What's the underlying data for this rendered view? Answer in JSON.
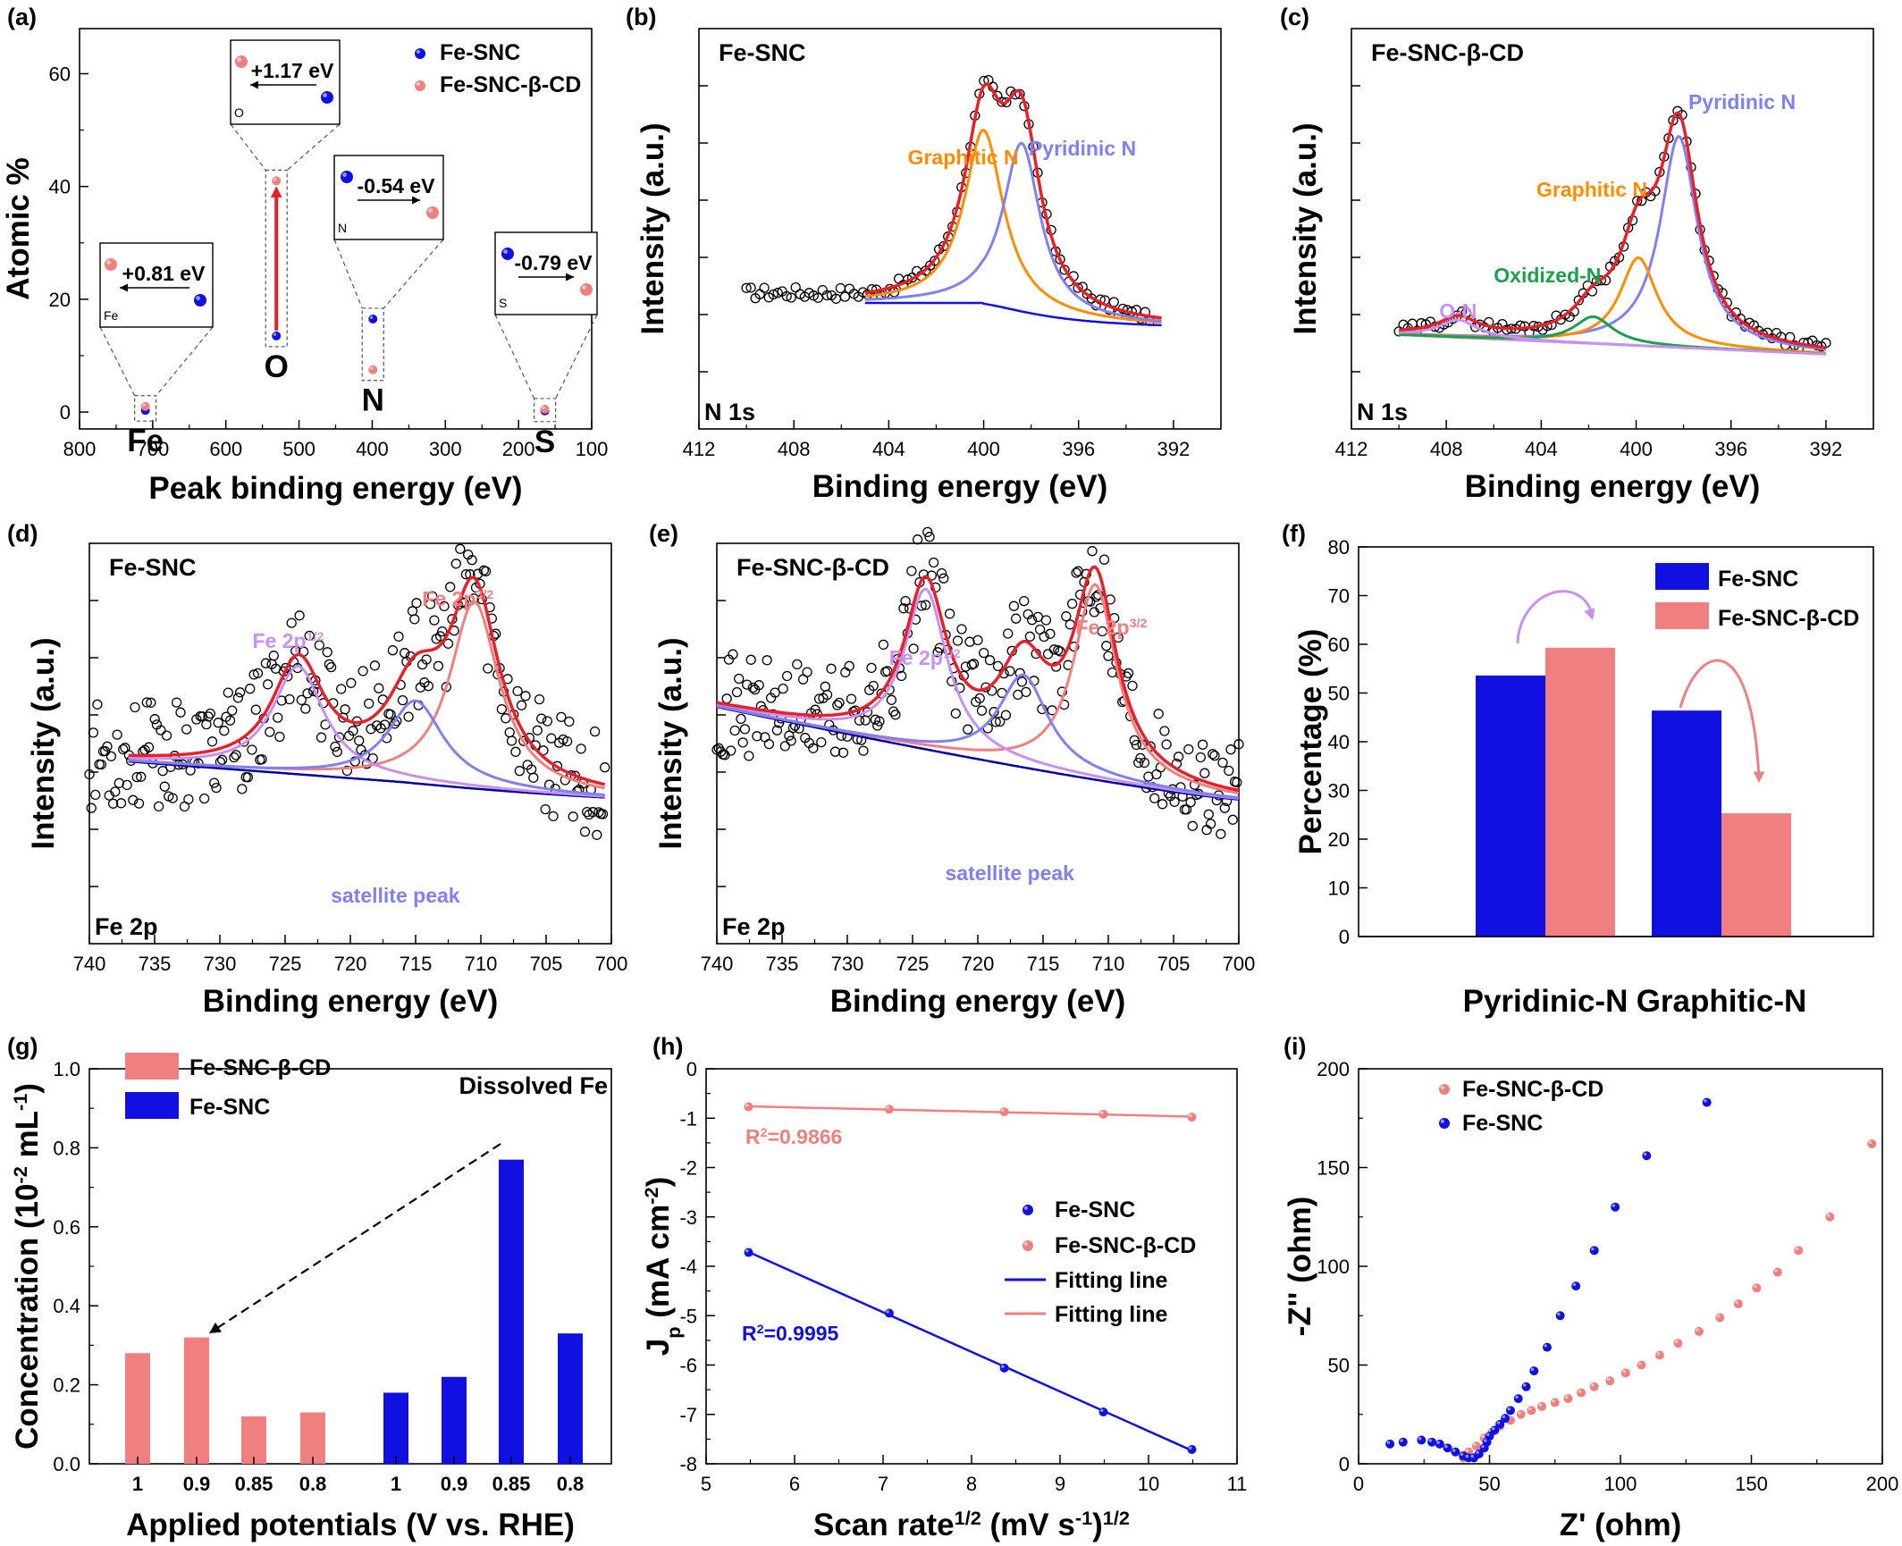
{
  "colors": {
    "blue": "#1010e0",
    "pink": "#f08080",
    "red": "#e8202a",
    "orange": "#ff8c00",
    "lightblue": "#8080f0",
    "green": "#1aa14a",
    "violet": "#c890f0",
    "navy": "#0000a0"
  },
  "chart_data": [
    {
      "id": "a",
      "panel": "(a)",
      "type": "scatter",
      "xlabel": "Peak binding energy (eV)",
      "ylabel": "Atomic %",
      "xlim": [
        800,
        100
      ],
      "ylim": [
        -3,
        68
      ],
      "xreversed": true,
      "xticks": [
        800,
        700,
        600,
        500,
        400,
        300,
        200,
        100
      ],
      "yticks": [
        0,
        20,
        40,
        60
      ],
      "legend": [
        "Fe-SNC",
        "Fe-SNC-β-CD"
      ],
      "elements": [
        {
          "label": "Fe",
          "x": 710,
          "fe_snc": 0.3,
          "fe_snc_bcd": 1.0,
          "box_label": "Fe",
          "shift": "+0.81 eV"
        },
        {
          "label": "O",
          "x": 531,
          "fe_snc": 13.5,
          "fe_snc_bcd": 41.0,
          "box_label": "O",
          "shift": "+1.17 eV"
        },
        {
          "label": "N",
          "x": 399,
          "fe_snc": 16.5,
          "fe_snc_bcd": 7.5,
          "box_label": "N",
          "shift": "-0.54 eV"
        },
        {
          "label": "S",
          "x": 164,
          "fe_snc": 0.2,
          "fe_snc_bcd": 0.5,
          "box_label": "S",
          "shift": "-0.79 eV"
        }
      ]
    },
    {
      "id": "b",
      "panel": "(b)",
      "type": "line",
      "title": "Fe-SNC",
      "corner": "N 1s",
      "xlabel": "Binding energy (eV)",
      "ylabel": "Intensity (a.u.)",
      "xlim": [
        412,
        390
      ],
      "xreversed": true,
      "xticks": [
        412,
        408,
        404,
        400,
        396,
        392
      ],
      "peaks": [
        {
          "name": "Graphitic N",
          "center": 400.0,
          "height": 0.68
        },
        {
          "name": "Pyridinic N",
          "center": 398.4,
          "height": 0.66
        }
      ]
    },
    {
      "id": "c",
      "panel": "(c)",
      "type": "line",
      "title": "Fe-SNC-β-CD",
      "corner": "N 1s",
      "xlabel": "Binding energy (eV)",
      "ylabel": "Intensity (a.u.)",
      "xlim": [
        412,
        390
      ],
      "xreversed": true,
      "xticks": [
        412,
        408,
        404,
        400,
        396,
        392
      ],
      "peaks": [
        {
          "name": "Pyridinic N",
          "center": 398.2,
          "height": 0.9
        },
        {
          "name": "Graphitic N",
          "center": 399.9,
          "height": 0.38
        },
        {
          "name": "Oxidized-N",
          "center": 401.8,
          "height": 0.12
        },
        {
          "name": "O-N",
          "center": 407.5,
          "height": 0.1
        }
      ]
    },
    {
      "id": "d",
      "panel": "(d)",
      "type": "line",
      "title": "Fe-SNC",
      "corner": "Fe 2p",
      "xlabel": "Binding energy (eV)",
      "ylabel": "Intensity (a.u.)",
      "xlim": [
        740,
        700
      ],
      "xreversed": true,
      "xticks": [
        740,
        735,
        730,
        725,
        720,
        715,
        710,
        705,
        700
      ],
      "peaks": [
        {
          "name": "Fe 2p",
          "sup": "3/2",
          "center": 710.5
        },
        {
          "name": "Fe 2p",
          "sup": "1/2",
          "center": 724.0
        },
        {
          "name": "satellite peak",
          "center": 715.0
        }
      ]
    },
    {
      "id": "e",
      "panel": "(e)",
      "type": "line",
      "title": "Fe-SNC-β-CD",
      "corner": "Fe 2p",
      "xlabel": "Binding energy (eV)",
      "ylabel": "Intensity (a.u.)",
      "xlim": [
        740,
        700
      ],
      "xreversed": true,
      "xticks": [
        740,
        735,
        730,
        725,
        720,
        715,
        710,
        705,
        700
      ],
      "peaks": [
        {
          "name": "Fe 2p",
          "sup": "3/2",
          "center": 711.0
        },
        {
          "name": "Fe 2p",
          "sup": "1/2",
          "center": 724.0
        },
        {
          "name": "satellite peak",
          "center": 716.5
        }
      ]
    },
    {
      "id": "f",
      "panel": "(f)",
      "type": "bar",
      "ylabel": "Percentage (%)",
      "categories": [
        "Pyridinic-N",
        "Graphitic-N"
      ],
      "ylim": [
        0,
        80
      ],
      "yticks": [
        0,
        10,
        20,
        30,
        40,
        50,
        60,
        70,
        80
      ],
      "series": [
        {
          "name": "Fe-SNC",
          "values": [
            53.6,
            46.4
          ]
        },
        {
          "name": "Fe-SNC-β-CD",
          "values": [
            59.3,
            25.3
          ]
        }
      ]
    },
    {
      "id": "g",
      "panel": "(g)",
      "type": "bar",
      "title": "Dissolved Fe",
      "xlabel": "Applied potentials (V vs. RHE)",
      "ylabel": "Concentration (10⁻² mL⁻¹)",
      "ylim": [
        0,
        1.0
      ],
      "yticks": [
        0.0,
        0.2,
        0.4,
        0.6,
        0.8,
        1.0
      ],
      "series": [
        {
          "name": "Fe-SNC-β-CD",
          "categories": [
            "1",
            "0.9",
            "0.85",
            "0.8"
          ],
          "values": [
            0.28,
            0.32,
            0.12,
            0.13
          ]
        },
        {
          "name": "Fe-SNC",
          "categories": [
            "1",
            "0.9",
            "0.85",
            "0.8"
          ],
          "values": [
            0.18,
            0.22,
            0.77,
            0.33
          ]
        }
      ]
    },
    {
      "id": "h",
      "panel": "(h)",
      "type": "scatter",
      "xlabel": "Scan rate",
      "xlabel_sup": "1/2",
      "xlabel_unit": " (mV s",
      "xlabel_unit_sup": "-1",
      "xlabel_close": ")",
      "xlabel_close_sup": "1/2",
      "ylabel": "J",
      "ylabel_sub": "p",
      "ylabel_unit": " (mA cm",
      "ylabel_unit_sup": "-2",
      "ylabel_close": ")",
      "xlim": [
        5,
        11
      ],
      "ylim": [
        -8,
        0
      ],
      "xticks": [
        5,
        6,
        7,
        8,
        9,
        10,
        11
      ],
      "yticks": [
        0,
        -1,
        -2,
        -3,
        -4,
        -5,
        -6,
        -7,
        -8
      ],
      "legend": [
        "Fe-SNC",
        "Fe-SNC-β-CD",
        "Fitting line",
        "Fitting line"
      ],
      "series": [
        {
          "name": "Fe-SNC",
          "x": [
            5.48,
            7.07,
            8.37,
            9.49,
            10.49
          ],
          "y": [
            -3.72,
            -4.95,
            -6.06,
            -6.95,
            -7.71
          ],
          "r2": "R²=0.9995"
        },
        {
          "name": "Fe-SNC-β-CD",
          "x": [
            5.48,
            7.07,
            8.37,
            9.49,
            10.49
          ],
          "y": [
            -0.77,
            -0.82,
            -0.87,
            -0.92,
            -0.98
          ],
          "r2": "R²=0.9866"
        }
      ]
    },
    {
      "id": "i",
      "panel": "(i)",
      "type": "scatter",
      "xlabel": "Z' (ohm)",
      "ylabel": "-Z'' (ohm)",
      "xlim": [
        0,
        200
      ],
      "ylim": [
        0,
        200
      ],
      "xticks": [
        0,
        50,
        100,
        150,
        200
      ],
      "yticks": [
        0,
        50,
        100,
        150,
        200
      ],
      "legend": [
        "Fe-SNC-β-CD",
        "Fe-SNC"
      ],
      "series": [
        {
          "name": "Fe-SNC-β-CD",
          "x": [
            40,
            42,
            45,
            48,
            51,
            54,
            58,
            62,
            66,
            70,
            75,
            80,
            85,
            90,
            96,
            102,
            108,
            115,
            122,
            130,
            138,
            145,
            152,
            160,
            168,
            180,
            196
          ],
          "y": [
            3,
            6,
            9,
            13,
            16,
            19,
            22,
            25,
            27,
            29,
            31,
            33,
            36,
            39,
            42,
            46,
            50,
            55,
            61,
            67,
            74,
            81,
            89,
            97,
            108,
            125,
            162
          ]
        },
        {
          "name": "Fe-SNC",
          "x": [
            12,
            17,
            24,
            28,
            31,
            34,
            37,
            40,
            42,
            44,
            46,
            48,
            49,
            50,
            52,
            54,
            56,
            58,
            61,
            64,
            67,
            72,
            77,
            83,
            90,
            98,
            110,
            133
          ],
          "y": [
            10,
            11,
            12,
            11,
            10,
            8,
            6,
            4,
            3,
            3,
            5,
            8,
            11,
            14,
            17,
            20,
            23,
            27,
            33,
            39,
            47,
            59,
            75,
            90,
            108,
            130,
            156,
            183
          ]
        }
      ]
    }
  ]
}
